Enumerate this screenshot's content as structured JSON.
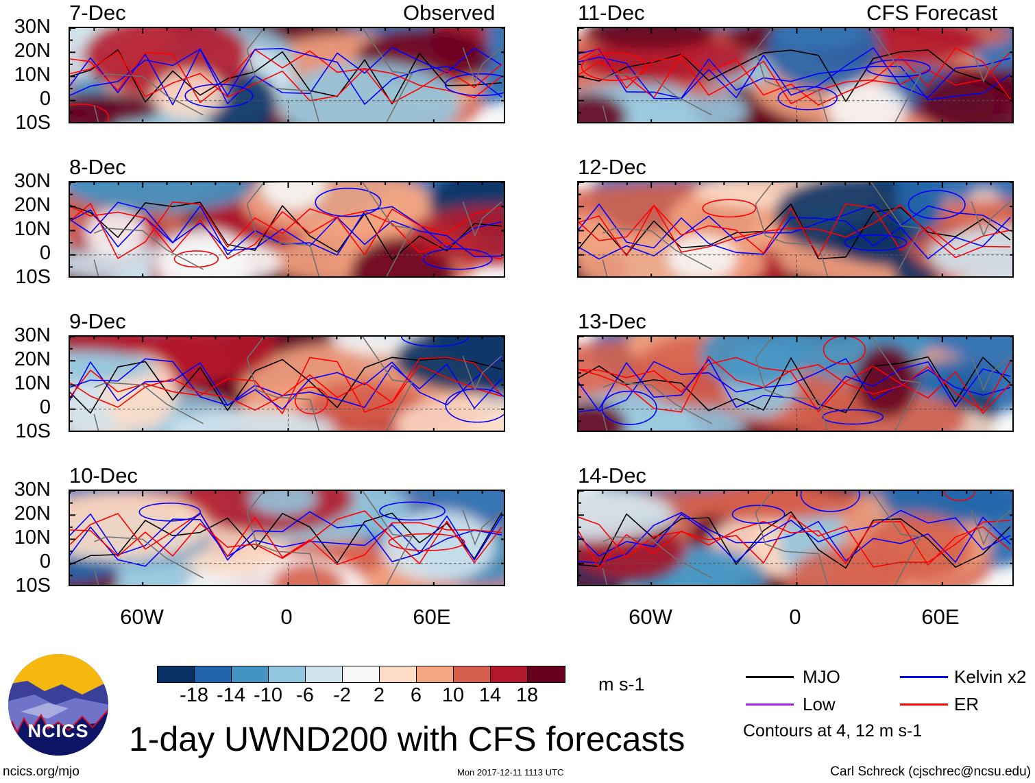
{
  "panels": {
    "left_header": "Observed",
    "right_header": "CFS Forecast",
    "left": [
      "7-Dec",
      "8-Dec",
      "9-Dec",
      "10-Dec"
    ],
    "right": [
      "11-Dec",
      "12-Dec",
      "13-Dec",
      "14-Dec"
    ]
  },
  "axes": {
    "lat_labels": [
      "30N",
      "20N",
      "10N",
      "0",
      "10S"
    ],
    "lon_labels": [
      "60W",
      "0",
      "60E"
    ],
    "lat_range": [
      -10,
      30
    ],
    "lon_range": [
      -90,
      90
    ]
  },
  "colorbar": {
    "labels": [
      "-18",
      "-14",
      "-10",
      "-6",
      "-2",
      "2",
      "6",
      "10",
      "14",
      "18"
    ],
    "colors": [
      "#0a3163",
      "#2166ac",
      "#4393c3",
      "#92c5de",
      "#d1e5f0",
      "#f7f7f7",
      "#fddbc7",
      "#f4a582",
      "#d6604d",
      "#b2182b",
      "#67001f"
    ],
    "units": "m s-1"
  },
  "legend": {
    "items": [
      {
        "label": "MJO",
        "color": "#000000"
      },
      {
        "label": "Kelvin x2",
        "color": "#0000ff"
      },
      {
        "label": "Low",
        "color": "#a020f0"
      },
      {
        "label": "ER",
        "color": "#ff0000"
      }
    ],
    "note": "Contours at 4, 12 m s-1"
  },
  "logo_text": "NCICS",
  "title": "1-day UWND200 with CFS forecasts",
  "footer": {
    "left": "ncics.org/mjo",
    "center": "Mon 2017-12-11 1113 UTC",
    "right": "Carl Schreck (cjschrec@ncsu.edu)"
  }
}
